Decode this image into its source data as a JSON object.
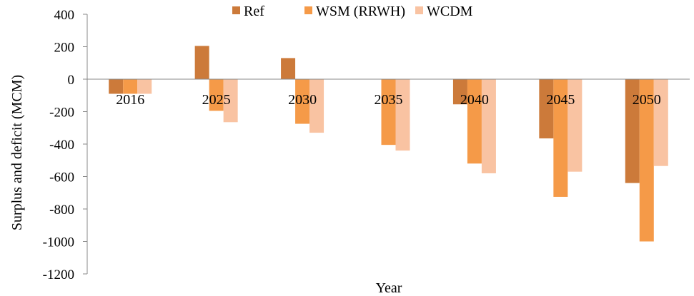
{
  "chart_data": {
    "type": "bar",
    "title": "",
    "xlabel": "Year",
    "ylabel": "Surplus and deficit (MCM)",
    "categories": [
      "2016",
      "2025",
      "2030",
      "2035",
      "2040",
      "2045",
      "2050"
    ],
    "series": [
      {
        "name": "Ref",
        "color": "#cc7a3a",
        "values": [
          -90,
          205,
          130,
          0,
          -155,
          -365,
          -640
        ]
      },
      {
        "name": "WSM (RRWH)",
        "color": "#f59a48",
        "values": [
          -90,
          -195,
          -275,
          -405,
          -520,
          -725,
          -1000
        ]
      },
      {
        "name": "WCDM",
        "color": "#f9c3a2",
        "values": [
          -90,
          -265,
          -330,
          -440,
          -580,
          -570,
          -535
        ]
      }
    ],
    "ylim": [
      -1200,
      400
    ],
    "yticks": [
      -1200,
      -1000,
      -800,
      -600,
      -400,
      -200,
      0,
      200,
      400
    ],
    "ytick_labels": [
      "-1200",
      "-1000",
      "-800",
      "-600",
      "-400",
      "-200",
      "0",
      "200",
      "400"
    ],
    "grid": false,
    "legend_position": "top-center"
  }
}
